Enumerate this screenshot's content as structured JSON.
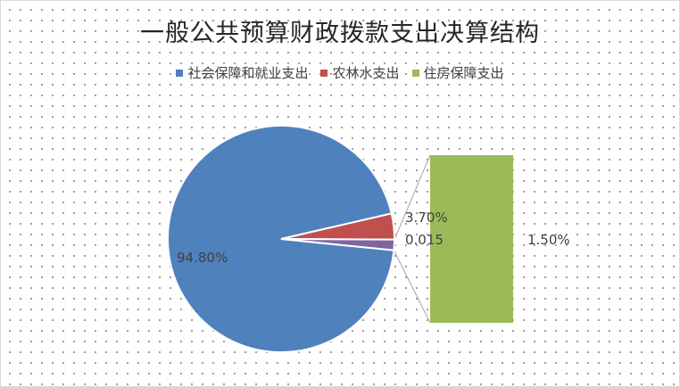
{
  "chart_data": {
    "type": "pie",
    "subtype": "pie-of-bar",
    "title": "一般公共预算财政拨款支出决算结构",
    "legend_position": "top",
    "slices": [
      {
        "name": "社会保障和就业支出",
        "value": 0.948,
        "label": "94.80%",
        "color": "#4f81bd"
      },
      {
        "name": "农林水支出",
        "value": 0.037,
        "label": "3.70%",
        "color": "#c0504d"
      },
      {
        "name": "0.015",
        "value": 0.015,
        "label": "0.015",
        "color": "#8064a2"
      }
    ],
    "secondary_bar": {
      "name": "住房保障支出",
      "value": 0.015,
      "label": "1.50%",
      "color": "#9bbb59"
    }
  }
}
